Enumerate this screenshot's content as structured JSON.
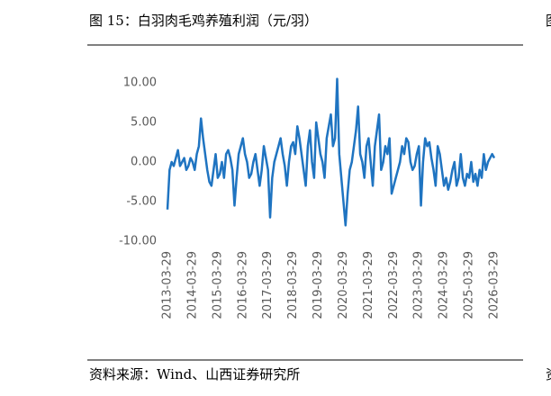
{
  "chart_data": {
    "type": "line",
    "title": "图 15：白羽肉毛鸡养殖利润（元/羽）",
    "source": "资料来源：Wind、山西证券研究所",
    "edge_fragments": [
      "图",
      "资"
    ],
    "categories": [
      "2013-03-29",
      null,
      null,
      null,
      null,
      null,
      null,
      null,
      null,
      null,
      null,
      null,
      "2014-03-29",
      null,
      null,
      null,
      null,
      null,
      null,
      null,
      null,
      null,
      null,
      null,
      "2015-03-29",
      null,
      null,
      null,
      null,
      null,
      null,
      null,
      null,
      null,
      null,
      null,
      "2016-03-29",
      null,
      null,
      null,
      null,
      null,
      null,
      null,
      null,
      null,
      null,
      null,
      "2017-03-29",
      null,
      null,
      null,
      null,
      null,
      null,
      null,
      null,
      null,
      null,
      null,
      "2018-03-29",
      null,
      null,
      null,
      null,
      null,
      null,
      null,
      null,
      null,
      null,
      null,
      "2019-03-29",
      null,
      null,
      null,
      null,
      null,
      null,
      null,
      null,
      null,
      null,
      null,
      "2020-03-29",
      null,
      null,
      null,
      null,
      null,
      null,
      null,
      null,
      null,
      null,
      null,
      "2021-03-29",
      null,
      null,
      null,
      null,
      null,
      null,
      null,
      null,
      null,
      null,
      null,
      "2022-03-29",
      null,
      null,
      null,
      null,
      null,
      null,
      null,
      null,
      null,
      null,
      null,
      "2023-03-29",
      null,
      null,
      null,
      null,
      null,
      null,
      null,
      null,
      null,
      null,
      null,
      "2024-03-29",
      null,
      null,
      null,
      null,
      null,
      null,
      null,
      null,
      null,
      null,
      null,
      "2025-03-29",
      null,
      null,
      null,
      null,
      null,
      null,
      null,
      null,
      null,
      null,
      null,
      "2026-03-29"
    ],
    "series": [
      {
        "color": "#1f74c1",
        "values": [
          -6,
          -1,
          0,
          -0.5,
          0.5,
          1.5,
          -0.5,
          0,
          0.5,
          -1,
          -0.5,
          0.5,
          0,
          -1,
          1,
          2,
          5.5,
          3,
          1,
          -1,
          -2.5,
          -3,
          -1,
          1,
          -2,
          -1.5,
          0,
          -2,
          1,
          1.5,
          0.5,
          -1,
          -5.5,
          -2,
          1,
          2,
          3,
          1,
          0,
          -2,
          -1.5,
          0,
          1,
          -1,
          -3,
          -1,
          2,
          0.5,
          -1,
          -7,
          -2,
          0,
          1,
          2,
          3,
          1,
          -0.5,
          -3,
          0,
          2,
          2.5,
          1,
          4.5,
          3,
          1,
          -1,
          -3,
          2,
          4,
          0,
          -2,
          5,
          3,
          1,
          0,
          -2,
          3,
          4.5,
          6,
          2,
          3,
          10.5,
          1,
          -2,
          -5,
          -8,
          -4,
          -1,
          0,
          2,
          4,
          7,
          1,
          0,
          -2,
          2,
          3,
          0,
          -3,
          2,
          4,
          6,
          -1,
          0,
          2,
          1,
          3,
          -4,
          -3,
          -2,
          -1,
          0,
          2,
          1,
          3,
          2.5,
          0,
          -1,
          -0.5,
          1,
          2,
          -5.5,
          0,
          3,
          2,
          2.5,
          0.5,
          -1,
          -3,
          2,
          1,
          -1,
          -3,
          -2,
          -3.5,
          -2.5,
          -1,
          0,
          -3,
          -2,
          1,
          -2,
          -3,
          -1.5,
          -2,
          0,
          -2.5,
          -1.5,
          -3,
          -1,
          -2,
          1,
          -1,
          0,
          0.5,
          1,
          0.5
        ]
      }
    ],
    "ylim": [
      -10,
      10
    ],
    "yticks": [
      {
        "value": -10,
        "label": "-10.00"
      },
      {
        "value": -5,
        "label": "-5.00"
      },
      {
        "value": 0,
        "label": "0.00"
      },
      {
        "value": 5,
        "label": "5.00"
      },
      {
        "value": 10,
        "label": "10.00"
      }
    ],
    "grid": false
  }
}
